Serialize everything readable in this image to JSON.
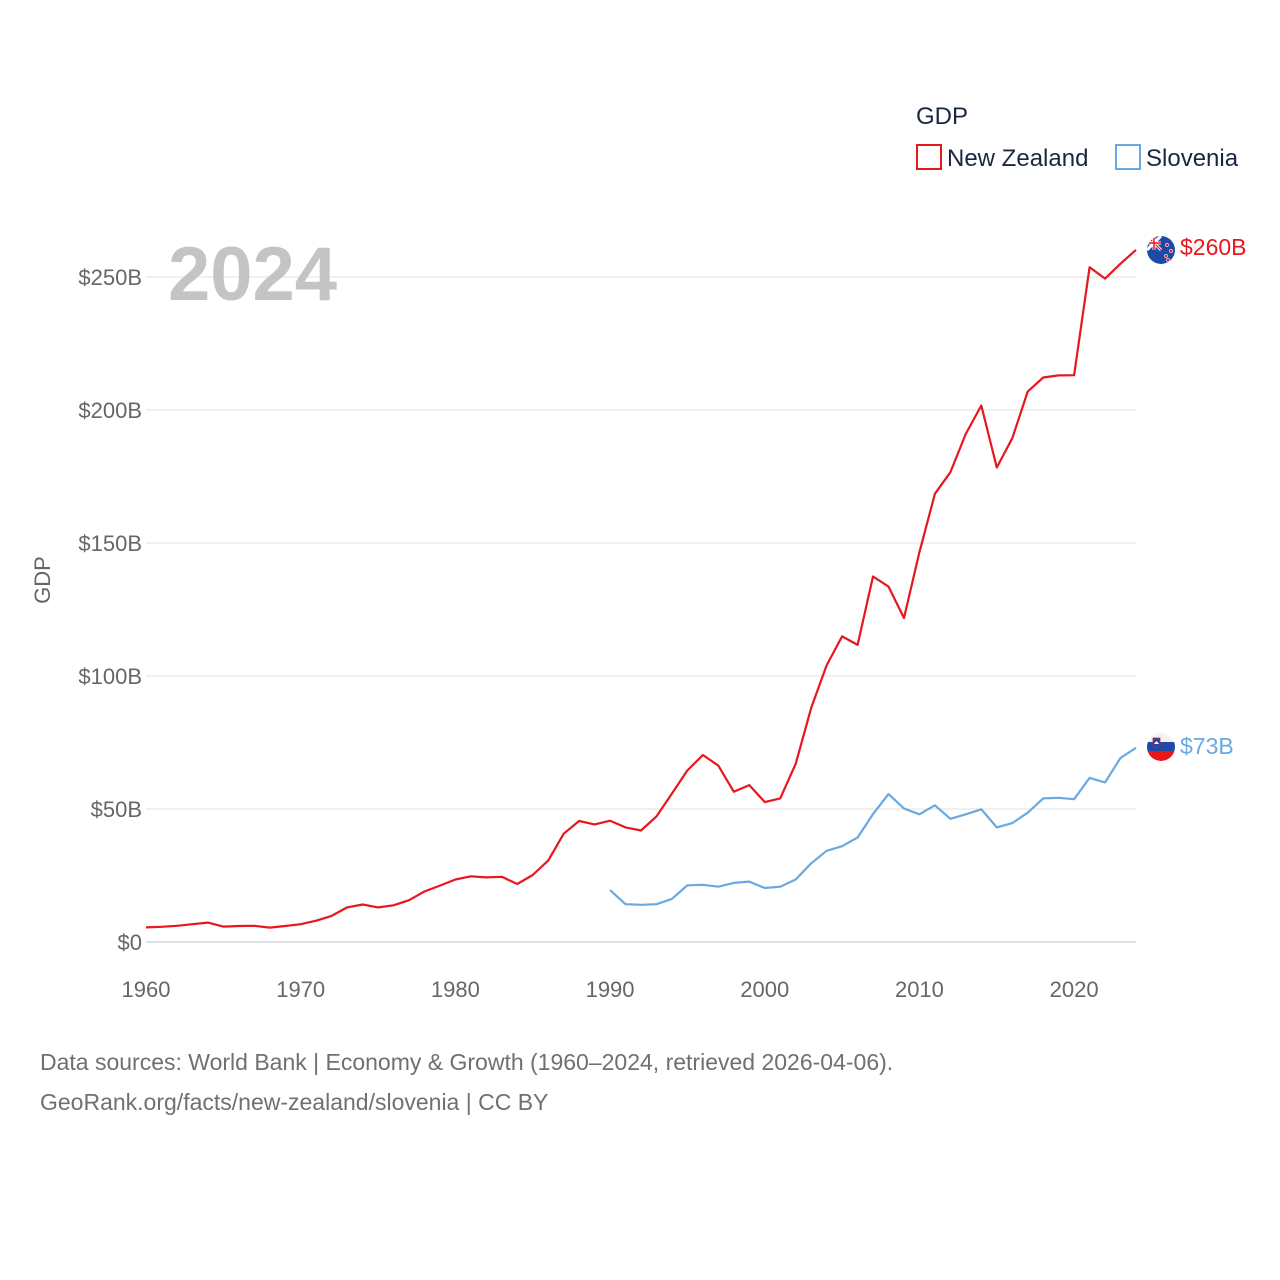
{
  "chart_data": {
    "type": "line",
    "year_label": "2024",
    "ylabel": "GDP",
    "xlim": [
      1960,
      2024
    ],
    "ylim": [
      0,
      250
    ],
    "y_ticks": [
      0,
      50,
      100,
      150,
      200,
      250
    ],
    "y_tick_labels": [
      "$0",
      "$50B",
      "$100B",
      "$150B",
      "$200B",
      "$250B"
    ],
    "x_ticks": [
      1960,
      1970,
      1980,
      1990,
      2000,
      2010,
      2020
    ],
    "x_tick_labels": [
      "1960",
      "1970",
      "1980",
      "1990",
      "2000",
      "2010",
      "2020"
    ],
    "legend": {
      "title": "GDP",
      "position": "top-right"
    },
    "series": [
      {
        "name": "New Zealand",
        "color": "#e8161d",
        "end_label": "$260B",
        "flag": "new-zealand",
        "x": [
          1960,
          1961,
          1962,
          1963,
          1964,
          1965,
          1966,
          1967,
          1968,
          1969,
          1970,
          1971,
          1972,
          1973,
          1974,
          1975,
          1976,
          1977,
          1978,
          1979,
          1980,
          1981,
          1982,
          1983,
          1984,
          1985,
          1986,
          1987,
          1988,
          1989,
          1990,
          1991,
          1992,
          1993,
          1994,
          1995,
          1996,
          1997,
          1998,
          1999,
          2000,
          2001,
          2002,
          2003,
          2004,
          2005,
          2006,
          2007,
          2008,
          2009,
          2010,
          2011,
          2012,
          2013,
          2014,
          2015,
          2016,
          2017,
          2018,
          2019,
          2020,
          2021,
          2022,
          2023,
          2024
        ],
        "values": [
          5.5,
          5.7,
          6.1,
          6.7,
          7.3,
          5.8,
          6.0,
          6.1,
          5.4,
          6.0,
          6.7,
          8.0,
          9.8,
          13.0,
          14.1,
          13.0,
          13.8,
          15.7,
          19.0,
          21.2,
          23.5,
          24.7,
          24.3,
          24.5,
          21.8,
          25.2,
          30.6,
          40.7,
          45.5,
          44.2,
          45.6,
          43.1,
          41.9,
          47.2,
          55.8,
          64.5,
          70.3,
          66.3,
          56.5,
          59.0,
          52.6,
          54.0,
          67.0,
          88.0,
          104.0,
          114.9,
          111.7,
          137.4,
          133.6,
          121.8,
          146.5,
          168.5,
          176.6,
          191.0,
          201.7,
          178.4,
          189.4,
          206.9,
          212.2,
          213.0,
          213.1,
          253.7,
          249.4,
          255.0,
          260.2
        ]
      },
      {
        "name": "Slovenia",
        "color": "#6aa8e2",
        "end_label": "$73B",
        "flag": "slovenia",
        "x": [
          1990,
          1991,
          1992,
          1993,
          1994,
          1995,
          1996,
          1997,
          1998,
          1999,
          2000,
          2001,
          2002,
          2003,
          2004,
          2005,
          2006,
          2007,
          2008,
          2009,
          2010,
          2011,
          2012,
          2013,
          2014,
          2015,
          2016,
          2017,
          2018,
          2019,
          2020,
          2021,
          2022,
          2023,
          2024
        ],
        "values": [
          19.5,
          14.2,
          14.0,
          14.2,
          16.2,
          21.3,
          21.5,
          20.8,
          22.2,
          22.7,
          20.3,
          20.8,
          23.5,
          29.6,
          34.3,
          36.0,
          39.3,
          48.1,
          55.6,
          50.2,
          48.0,
          51.4,
          46.3,
          48.0,
          49.9,
          43.1,
          44.7,
          48.6,
          54.0,
          54.2,
          53.7,
          61.7,
          60.0,
          69.2,
          73.0
        ]
      }
    ]
  },
  "footer": {
    "line1": "Data sources: World Bank | Economy & Growth (1960–2024, retrieved 2026-04-06).",
    "line2": "GeoRank.org/facts/new-zealand/slovenia | CC BY"
  }
}
